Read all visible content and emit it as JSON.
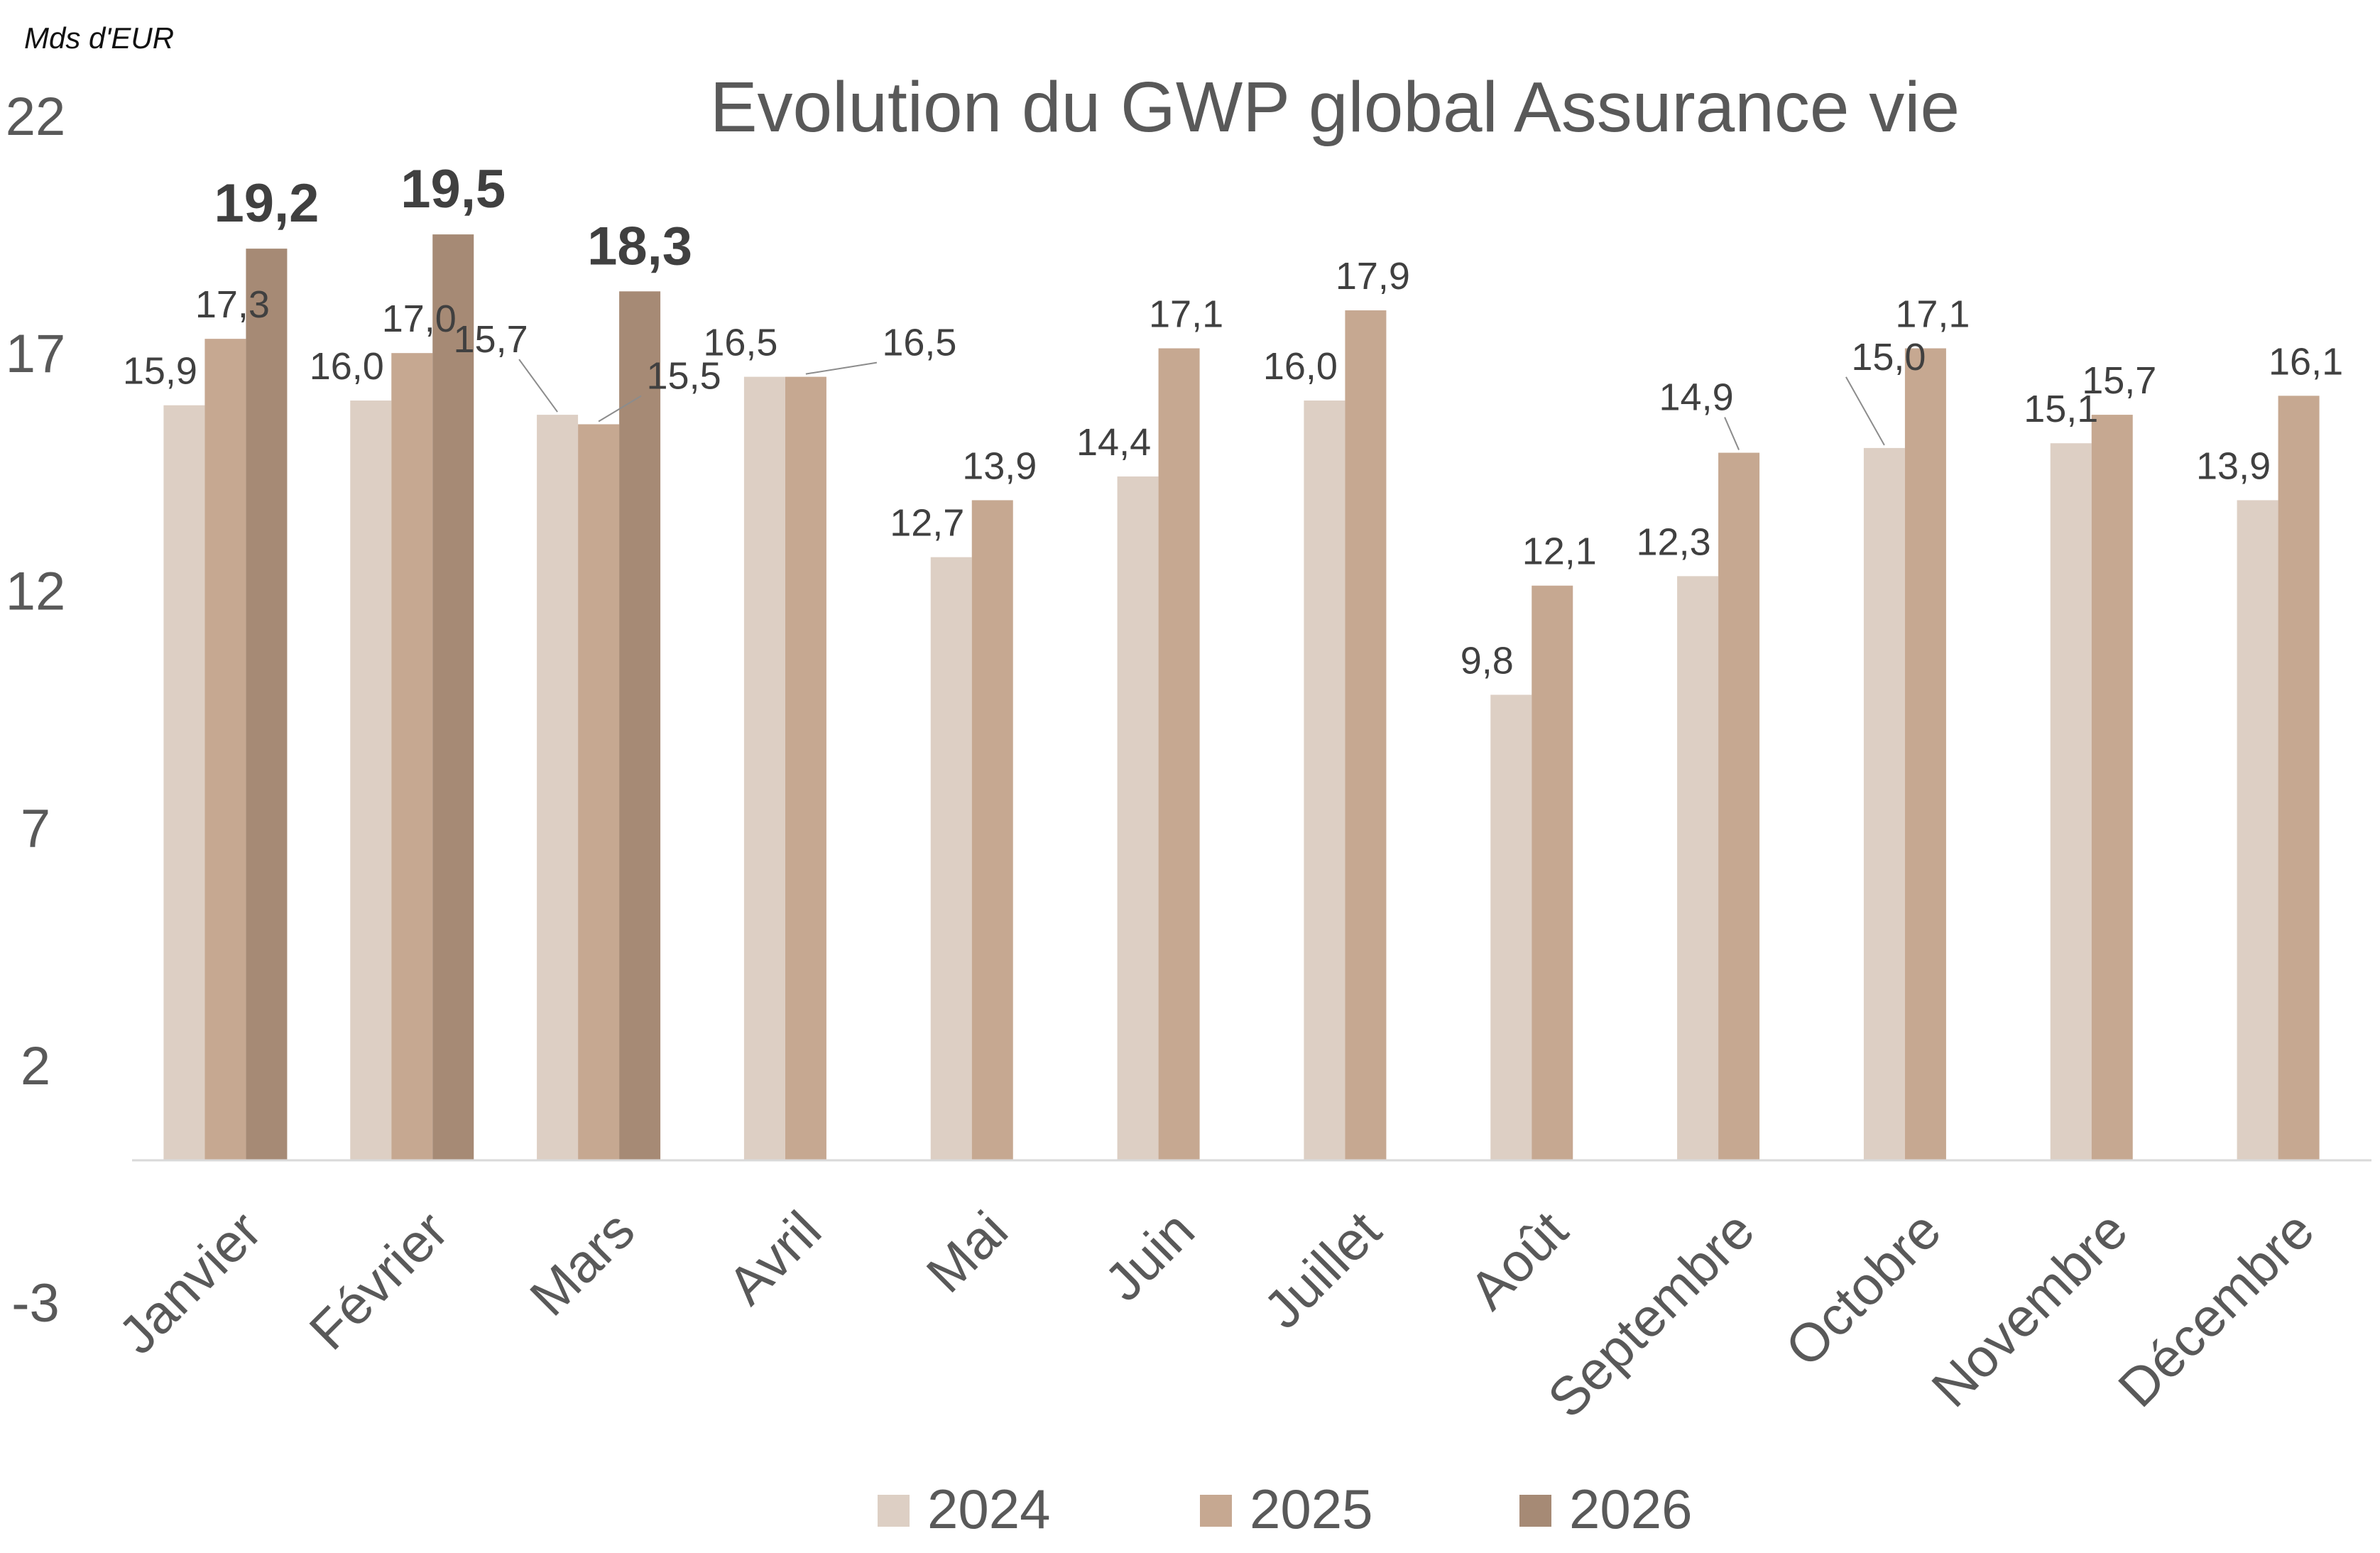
{
  "unit_label": "Mds d'EUR",
  "colors": {
    "2024": "#ddcfc4",
    "2025": "#c6a891",
    "2026": "#a68a75",
    "axis": "#d9d9d9"
  },
  "chart_data": {
    "type": "bar",
    "title": "Evolution du GWP global Assurance vie",
    "xlabel": "",
    "ylabel": "Mds d'EUR",
    "ylim": [
      -3,
      22
    ],
    "yticks": [
      "22",
      "17",
      "12",
      "7",
      "2",
      "-3"
    ],
    "categories": [
      "Janvier",
      "Février",
      "Mars",
      "Avril",
      "Mai",
      "Juin",
      "Juillet",
      "Août",
      "Septembre",
      "Octobre",
      "Novembre",
      "Décembre"
    ],
    "series": [
      {
        "name": "2024",
        "values": [
          15.9,
          16.0,
          15.7,
          16.5,
          12.7,
          14.4,
          16.0,
          9.8,
          12.3,
          15.0,
          15.1,
          13.9
        ],
        "labels": [
          "15,9",
          "16,0",
          "15,7",
          "16,5",
          "12,7",
          "14,4",
          "16,0",
          "9,8",
          "12,3",
          "15,0",
          "15,1",
          "13,9"
        ]
      },
      {
        "name": "2025",
        "values": [
          17.3,
          17.0,
          15.5,
          16.5,
          13.9,
          17.1,
          17.9,
          12.1,
          14.9,
          17.1,
          15.7,
          16.1
        ],
        "labels": [
          "17,3",
          "17,0",
          "15,5",
          "16,5",
          "13,9",
          "17,1",
          "17,9",
          "12,1",
          "14,9",
          "17,1",
          "15,7",
          "16,1"
        ]
      },
      {
        "name": "2026",
        "values": [
          19.2,
          19.5,
          18.3,
          null,
          null,
          null,
          null,
          null,
          null,
          null,
          null,
          null
        ],
        "labels": [
          "19,2",
          "19,5",
          "18,3",
          "",
          "",
          "",
          "",
          "",
          "",
          "",
          "",
          ""
        ]
      }
    ],
    "legend": {
      "position": "bottom",
      "entries": [
        "2024",
        "2025",
        "2026"
      ]
    },
    "grid": false
  }
}
